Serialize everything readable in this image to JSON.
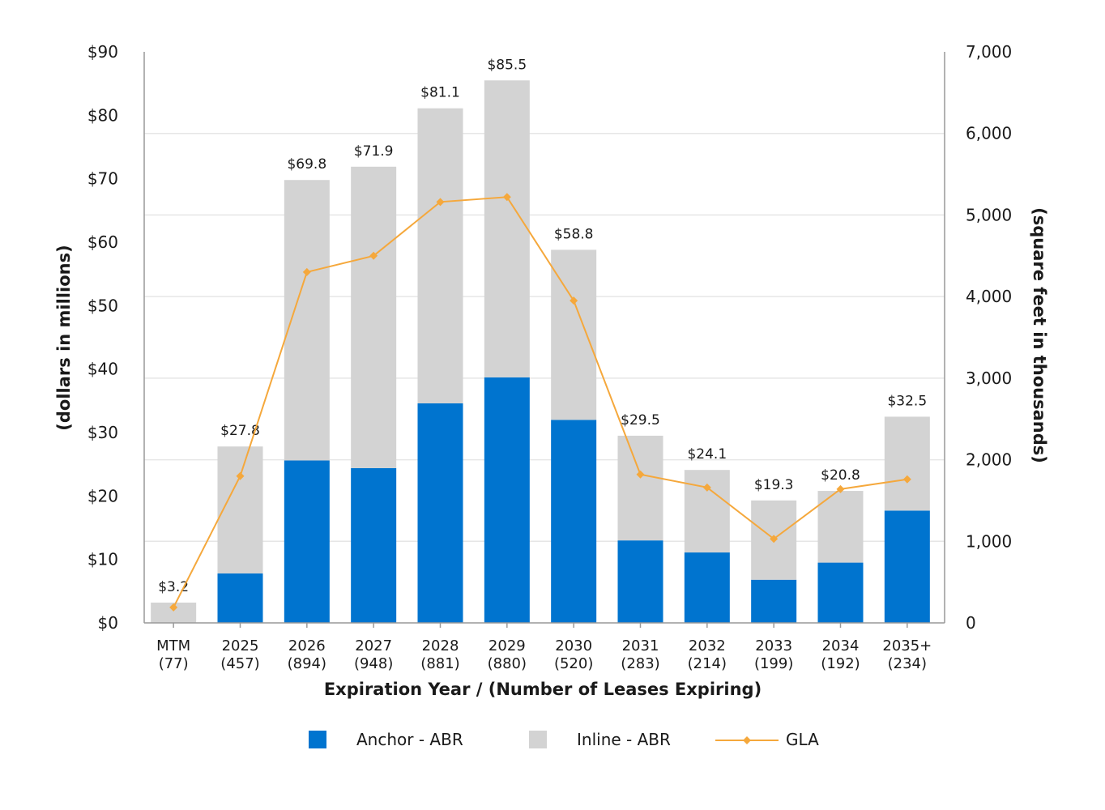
{
  "chart_data": {
    "type": "bar",
    "stacked": true,
    "categories": [
      "MTM",
      "2025",
      "2026",
      "2027",
      "2028",
      "2029",
      "2030",
      "2031",
      "2032",
      "2033",
      "2034",
      "2035+"
    ],
    "category_counts": [
      "(77)",
      "(457)",
      "(894)",
      "(948)",
      "(881)",
      "(880)",
      "(520)",
      "(283)",
      "(214)",
      "(199)",
      "(192)",
      "(234)"
    ],
    "totals": [
      "$3.2",
      "$27.8",
      "$69.8",
      "$71.9",
      "$81.1",
      "$85.5",
      "$58.8",
      "$29.5",
      "$24.1",
      "$19.3",
      "$20.8",
      "$32.5"
    ],
    "series": [
      {
        "name": "Anchor - ABR",
        "type": "bar",
        "axis": "left",
        "color": "#0074CF",
        "values": [
          0.0,
          7.8,
          25.6,
          24.4,
          34.6,
          38.7,
          32.0,
          13.0,
          11.1,
          6.8,
          9.5,
          17.7
        ]
      },
      {
        "name": "Inline - ABR",
        "type": "bar",
        "axis": "left",
        "color": "#D3D3D3",
        "values": [
          3.2,
          20.0,
          44.2,
          47.5,
          46.5,
          46.8,
          26.8,
          16.5,
          13.0,
          12.5,
          11.3,
          14.8
        ]
      },
      {
        "name": "GLA",
        "type": "line",
        "axis": "right",
        "color": "#F5A83C",
        "marker": "diamond",
        "values": [
          190,
          1800,
          4300,
          4500,
          5160,
          5220,
          3950,
          1820,
          1660,
          1030,
          1640,
          1760
        ]
      }
    ],
    "xlabel": "Expiration Year / (Number of Leases Expiring)",
    "ylabel": "(dollars in millions)",
    "y2label": "(square feet in thousands)",
    "ylim": [
      0,
      90
    ],
    "y2lim": [
      0,
      7000
    ],
    "yticks": [
      "$0",
      "$10",
      "$20",
      "$30",
      "$40",
      "$50",
      "$60",
      "$70",
      "$80",
      "$90"
    ],
    "y2ticks": [
      "0",
      "1,000",
      "2,000",
      "3,000",
      "4,000",
      "5,000",
      "6,000",
      "7,000"
    ],
    "grid": true,
    "legend": "bottom-center"
  }
}
